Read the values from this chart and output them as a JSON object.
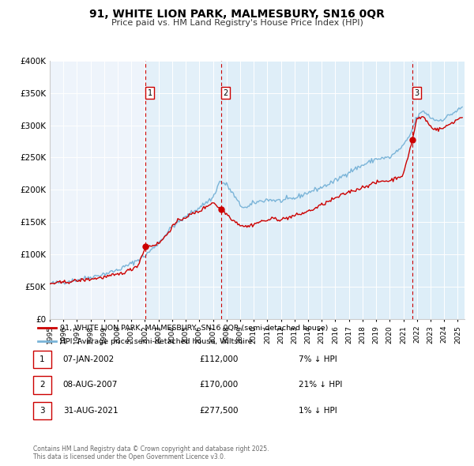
{
  "title": "91, WHITE LION PARK, MALMESBURY, SN16 0QR",
  "subtitle": "Price paid vs. HM Land Registry's House Price Index (HPI)",
  "ylim": [
    0,
    400000
  ],
  "yticks": [
    0,
    50000,
    100000,
    150000,
    200000,
    250000,
    300000,
    350000,
    400000
  ],
  "hpi_color": "#7ab4d8",
  "hpi_fill_color": "#ddeef8",
  "price_color": "#cc0000",
  "background_color": "#eef4fb",
  "sale_dates_num": [
    2002.04,
    2007.59,
    2021.66
  ],
  "sale_prices": [
    112000,
    170000,
    277500
  ],
  "sale_labels": [
    "1",
    "2",
    "3"
  ],
  "vline_dates": [
    2002.04,
    2007.59,
    2021.66
  ],
  "xlim": [
    1995.0,
    2025.5
  ],
  "legend_price_label": "91, WHITE LION PARK, MALMESBURY, SN16 0QR (semi-detached house)",
  "legend_hpi_label": "HPI: Average price, semi-detached house, Wiltshire",
  "table_entries": [
    {
      "num": "1",
      "date": "07-JAN-2002",
      "price": "£112,000",
      "note": "7% ↓ HPI"
    },
    {
      "num": "2",
      "date": "08-AUG-2007",
      "price": "£170,000",
      "note": "21% ↓ HPI"
    },
    {
      "num": "3",
      "date": "31-AUG-2021",
      "price": "£277,500",
      "note": "1% ↓ HPI"
    }
  ],
  "footer": "Contains HM Land Registry data © Crown copyright and database right 2025.\nThis data is licensed under the Open Government Licence v3.0.",
  "hpi_anchors": [
    [
      1995.0,
      55000
    ],
    [
      1996.0,
      57500
    ],
    [
      1997.0,
      61000
    ],
    [
      1998.0,
      65000
    ],
    [
      1999.0,
      70000
    ],
    [
      2000.0,
      76000
    ],
    [
      2001.0,
      86000
    ],
    [
      2002.0,
      98000
    ],
    [
      2003.0,
      118000
    ],
    [
      2004.0,
      143000
    ],
    [
      2005.0,
      158000
    ],
    [
      2006.0,
      173000
    ],
    [
      2007.0,
      188000
    ],
    [
      2007.5,
      213000
    ],
    [
      2008.0,
      208000
    ],
    [
      2008.5,
      193000
    ],
    [
      2009.0,
      176000
    ],
    [
      2009.5,
      172000
    ],
    [
      2010.0,
      180000
    ],
    [
      2011.0,
      185000
    ],
    [
      2012.0,
      183000
    ],
    [
      2013.0,
      187000
    ],
    [
      2014.0,
      196000
    ],
    [
      2015.0,
      204000
    ],
    [
      2016.0,
      214000
    ],
    [
      2017.0,
      228000
    ],
    [
      2018.0,
      238000
    ],
    [
      2019.0,
      248000
    ],
    [
      2020.0,
      250000
    ],
    [
      2021.0,
      268000
    ],
    [
      2021.5,
      285000
    ],
    [
      2022.0,
      313000
    ],
    [
      2022.5,
      322000
    ],
    [
      2023.0,
      312000
    ],
    [
      2023.5,
      307000
    ],
    [
      2024.0,
      310000
    ],
    [
      2024.5,
      317000
    ],
    [
      2025.0,
      323000
    ],
    [
      2025.3,
      327000
    ]
  ],
  "price_anchors": [
    [
      1995.0,
      55000
    ],
    [
      1996.0,
      57000
    ],
    [
      1997.0,
      59500
    ],
    [
      1998.0,
      62000
    ],
    [
      1999.0,
      65000
    ],
    [
      2000.0,
      69000
    ],
    [
      2001.0,
      77000
    ],
    [
      2001.5,
      84000
    ],
    [
      2002.04,
      112000
    ],
    [
      2002.5,
      114000
    ],
    [
      2003.0,
      117000
    ],
    [
      2003.5,
      128000
    ],
    [
      2004.0,
      143000
    ],
    [
      2004.5,
      153000
    ],
    [
      2005.0,
      158000
    ],
    [
      2005.5,
      163000
    ],
    [
      2006.0,
      167000
    ],
    [
      2006.5,
      174000
    ],
    [
      2007.0,
      181000
    ],
    [
      2007.59,
      170000
    ],
    [
      2008.0,
      163000
    ],
    [
      2008.5,
      153000
    ],
    [
      2009.0,
      146000
    ],
    [
      2009.5,
      143000
    ],
    [
      2010.0,
      147000
    ],
    [
      2010.5,
      151000
    ],
    [
      2011.0,
      153000
    ],
    [
      2011.5,
      156000
    ],
    [
      2012.0,
      154000
    ],
    [
      2012.5,
      157000
    ],
    [
      2013.0,
      160000
    ],
    [
      2013.5,
      163000
    ],
    [
      2014.0,
      167000
    ],
    [
      2014.5,
      171000
    ],
    [
      2015.0,
      177000
    ],
    [
      2015.5,
      182000
    ],
    [
      2016.0,
      187000
    ],
    [
      2016.5,
      192000
    ],
    [
      2017.0,
      197000
    ],
    [
      2017.5,
      200000
    ],
    [
      2018.0,
      204000
    ],
    [
      2018.5,
      208000
    ],
    [
      2019.0,
      211000
    ],
    [
      2019.5,
      214000
    ],
    [
      2020.0,
      214000
    ],
    [
      2020.5,
      219000
    ],
    [
      2021.0,
      223000
    ],
    [
      2021.66,
      277500
    ],
    [
      2022.0,
      310000
    ],
    [
      2022.5,
      313000
    ],
    [
      2023.0,
      298000
    ],
    [
      2023.5,
      293000
    ],
    [
      2024.0,
      296000
    ],
    [
      2024.5,
      303000
    ],
    [
      2025.0,
      309000
    ],
    [
      2025.3,
      313000
    ]
  ]
}
